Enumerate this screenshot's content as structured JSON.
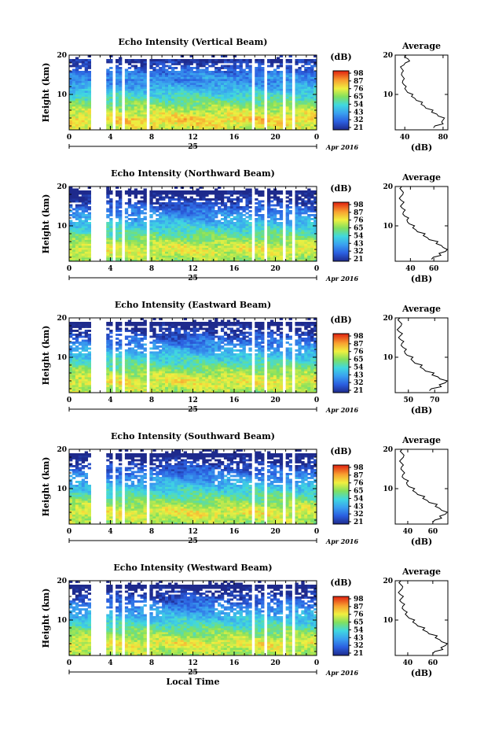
{
  "chart_data": [
    {
      "type": "heatmap",
      "title": "Echo Intensity (Vertical Beam)",
      "ylabel": "Height (km)",
      "xticks": [
        "0",
        "4",
        "8",
        "12",
        "16",
        "20",
        "0"
      ],
      "yticks": [
        "10",
        "20"
      ],
      "ylim": [
        1,
        20
      ],
      "xlim": [
        0,
        24
      ],
      "date_label": "25",
      "month_label": "Apr 2016",
      "colorbar": {
        "unit": "(dB)",
        "ticks": [
          "98",
          "87",
          "76",
          "65",
          "54",
          "43",
          "32",
          "21"
        ],
        "range": [
          21,
          98
        ]
      },
      "profile": {
        "title": "Average",
        "xlabel": "(dB)",
        "xticks": [
          "40",
          "80"
        ],
        "xlim": [
          30,
          85
        ],
        "heights": [
          1.5,
          2.5,
          3.5,
          4.5,
          5.5,
          6.5,
          7.5,
          8.5,
          9.5,
          10.5,
          11.5,
          12.5,
          13.5,
          14.5,
          15.5,
          16.5,
          17.5,
          18.5,
          19.5
        ],
        "values": [
          70,
          80,
          80,
          75,
          68,
          62,
          57,
          52,
          47,
          43,
          40,
          39,
          38,
          38,
          37,
          37,
          39,
          45,
          40
        ]
      }
    },
    {
      "type": "heatmap",
      "title": "Echo Intensity (Northward Beam)",
      "ylabel": "Height (km)",
      "xticks": [
        "0",
        "4",
        "8",
        "12",
        "16",
        "20",
        "0"
      ],
      "yticks": [
        "10",
        "20"
      ],
      "ylim": [
        1,
        20
      ],
      "xlim": [
        0,
        24
      ],
      "date_label": "25",
      "month_label": "Apr 2016",
      "colorbar": {
        "unit": "(dB)",
        "ticks": [
          "98",
          "87",
          "76",
          "65",
          "54",
          "43",
          "32",
          "21"
        ],
        "range": [
          21,
          98
        ]
      },
      "profile": {
        "title": "Average",
        "xlabel": "(dB)",
        "xticks": [
          "40",
          "60"
        ],
        "xlim": [
          27,
          72
        ],
        "heights": [
          1.5,
          2.5,
          3.5,
          4.5,
          5.5,
          6.5,
          7.5,
          8.5,
          9.5,
          10.5,
          11.5,
          12.5,
          13.5,
          14.5,
          15.5,
          16.5,
          17.5,
          18.5,
          19.5
        ],
        "values": [
          58,
          66,
          70,
          68,
          62,
          56,
          51,
          46,
          42,
          39,
          37,
          35,
          34,
          33,
          33,
          32,
          32,
          34,
          31
        ]
      }
    },
    {
      "type": "heatmap",
      "title": "Echo Intensity (Eastward Beam)",
      "ylabel": "Height (km)",
      "xticks": [
        "0",
        "4",
        "8",
        "12",
        "16",
        "20",
        "0"
      ],
      "yticks": [
        "10",
        "20"
      ],
      "ylim": [
        1,
        20
      ],
      "xlim": [
        0,
        24
      ],
      "date_label": "25",
      "month_label": "Apr 2016",
      "colorbar": {
        "unit": "(dB)",
        "ticks": [
          "98",
          "87",
          "76",
          "65",
          "54",
          "43",
          "32",
          "21"
        ],
        "range": [
          21,
          98
        ]
      },
      "profile": {
        "title": "Average",
        "xlabel": "(dB)",
        "xticks": [
          "50",
          "70"
        ],
        "xlim": [
          40,
          80
        ],
        "heights": [
          1.5,
          2.5,
          3.5,
          4.5,
          5.5,
          6.5,
          7.5,
          8.5,
          9.5,
          10.5,
          11.5,
          12.5,
          13.5,
          14.5,
          15.5,
          16.5,
          17.5,
          18.5,
          19.5
        ],
        "values": [
          66,
          75,
          78,
          74,
          68,
          63,
          59,
          55,
          52,
          49,
          47,
          46,
          45,
          44,
          44,
          43,
          43,
          45,
          42
        ]
      }
    },
    {
      "type": "heatmap",
      "title": "Echo Intensity (Southward Beam)",
      "ylabel": "Height (km)",
      "xticks": [
        "0",
        "4",
        "8",
        "12",
        "16",
        "20",
        "0"
      ],
      "yticks": [
        "10",
        "20"
      ],
      "ylim": [
        1,
        20
      ],
      "xlim": [
        0,
        24
      ],
      "date_label": "25",
      "month_label": "Apr 2016",
      "colorbar": {
        "unit": "(dB)",
        "ticks": [
          "98",
          "87",
          "76",
          "65",
          "54",
          "43",
          "32",
          "21"
        ],
        "range": [
          21,
          98
        ]
      },
      "profile": {
        "title": "Average",
        "xlabel": "(dB)",
        "xticks": [
          "40",
          "60"
        ],
        "xlim": [
          30,
          72
        ],
        "heights": [
          1.5,
          2.5,
          3.5,
          4.5,
          5.5,
          6.5,
          7.5,
          8.5,
          9.5,
          10.5,
          11.5,
          12.5,
          13.5,
          14.5,
          15.5,
          16.5,
          17.5,
          18.5,
          19.5
        ],
        "values": [
          60,
          67,
          70,
          67,
          62,
          57,
          52,
          48,
          44,
          41,
          39,
          37,
          36,
          36,
          35,
          35,
          35,
          37,
          34
        ]
      }
    },
    {
      "type": "heatmap",
      "title": "Echo Intensity (Westward Beam)",
      "ylabel": "Height (km)",
      "xlabel": "Local Time",
      "xticks": [
        "0",
        "4",
        "8",
        "12",
        "16",
        "20",
        "0"
      ],
      "yticks": [
        "10",
        "20"
      ],
      "ylim": [
        1,
        20
      ],
      "xlim": [
        0,
        24
      ],
      "date_label": "25",
      "month_label": "Apr 2016",
      "colorbar": {
        "unit": "(dB)",
        "ticks": [
          "98",
          "87",
          "76",
          "65",
          "54",
          "43",
          "32",
          "21"
        ],
        "range": [
          21,
          98
        ]
      },
      "profile": {
        "title": "Average",
        "xlabel": "(dB)",
        "xticks": [
          "40",
          "60"
        ],
        "xlim": [
          30,
          72
        ],
        "heights": [
          1.5,
          2.5,
          3.5,
          4.5,
          5.5,
          6.5,
          7.5,
          8.5,
          9.5,
          10.5,
          11.5,
          12.5,
          13.5,
          14.5,
          15.5,
          16.5,
          17.5,
          18.5,
          19.5
        ],
        "values": [
          60,
          68,
          70,
          67,
          62,
          57,
          52,
          48,
          44,
          41,
          38,
          37,
          36,
          35,
          35,
          34,
          34,
          36,
          33
        ]
      }
    }
  ]
}
